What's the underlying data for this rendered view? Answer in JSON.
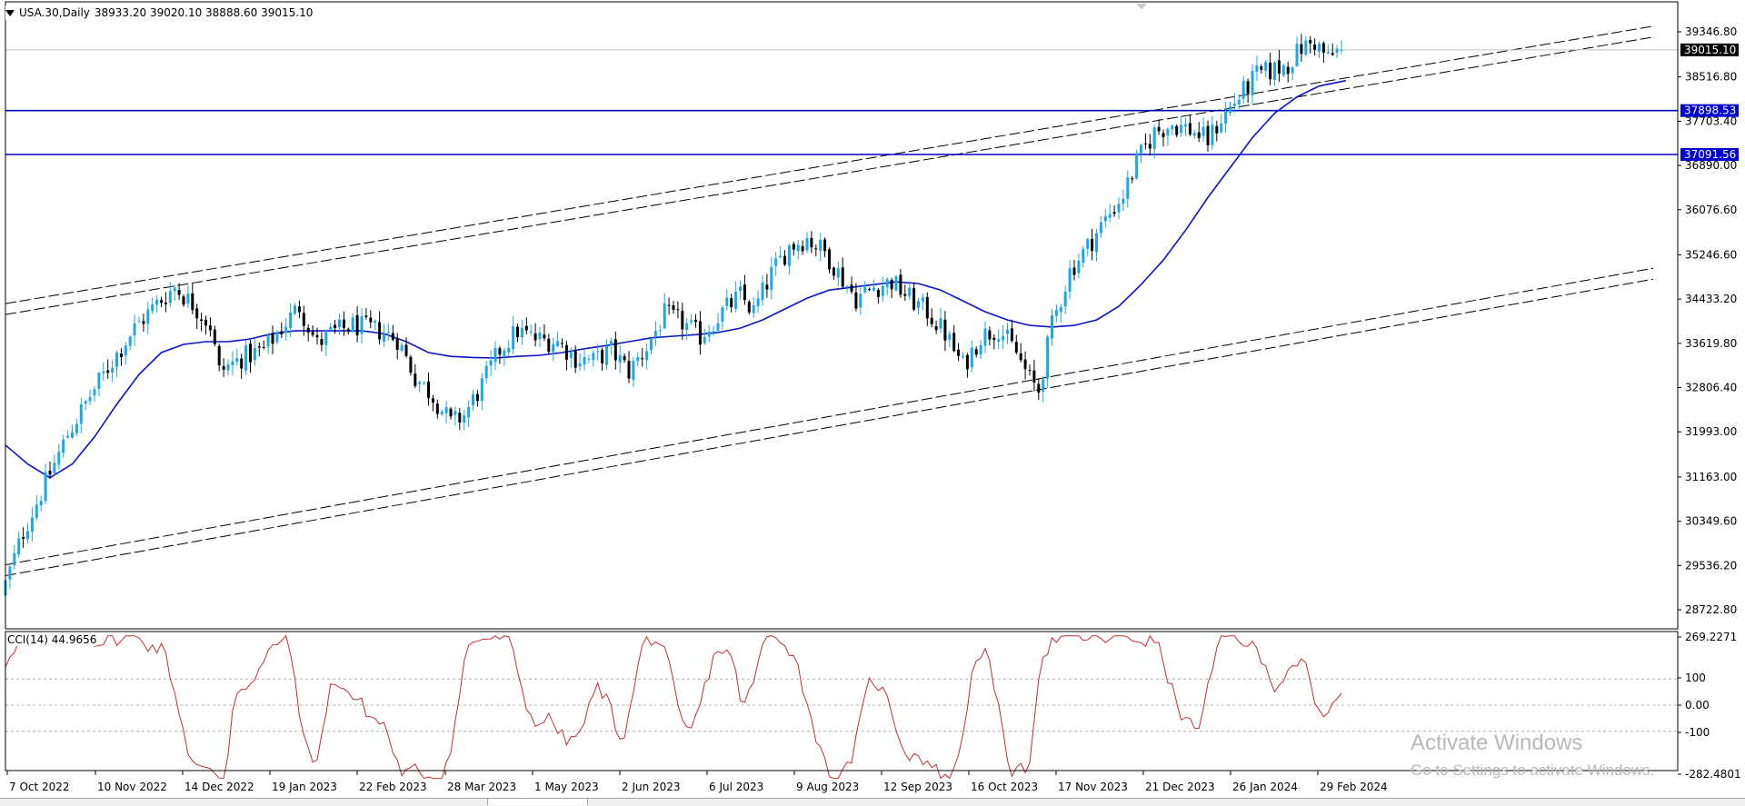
{
  "header": {
    "symbol_tf": "USA.30,Daily",
    "ohlc": "38933.20 39020.10 38888.60 39015.10"
  },
  "indicator": {
    "label": "CCI(14) 44.9656"
  },
  "watermark": {
    "line1": "Activate Windows",
    "line2": "Go to Settings to activate Windows."
  },
  "colors": {
    "bull": "#1ea7e6",
    "bear": "#000000",
    "ma": "#0a14c8",
    "hline": "#0000c0",
    "cci": "#c03030",
    "price_tag_bg": "#000000",
    "level_tag_bg": "#0000d0"
  },
  "chart_data": {
    "type": "candlestick",
    "price_axis_ticks": [
      "39346.80",
      "38516.80",
      "37703.40",
      "36890.00",
      "36076.60",
      "35246.60",
      "34433.20",
      "33619.80",
      "32806.40",
      "31993.00",
      "31163.00",
      "30349.60",
      "29536.20",
      "28722.80"
    ],
    "date_ticks": [
      "7 Oct 2022",
      "10 Nov 2022",
      "14 Dec 2022",
      "19 Jan 2023",
      "22 Feb 2023",
      "28 Mar 2023",
      "1 May 2023",
      "2 Jun 2023",
      "6 Jul 2023",
      "9 Aug 2023",
      "12 Sep 2023",
      "16 Oct 2023",
      "17 Nov 2023",
      "21 Dec 2023",
      "26 Jan 2024",
      "29 Feb 2024"
    ],
    "current_price": "39015.10",
    "horizontal_levels": [
      "37898.53",
      "37091.56"
    ],
    "price_path": [
      [
        0,
        29200
      ],
      [
        4,
        30150
      ],
      [
        9,
        31050
      ],
      [
        14,
        31950
      ],
      [
        19,
        32650
      ],
      [
        24,
        33300
      ],
      [
        29,
        33900
      ],
      [
        34,
        34350
      ],
      [
        38,
        34650
      ],
      [
        42,
        34350
      ],
      [
        46,
        33950
      ],
      [
        48,
        33100
      ],
      [
        53,
        33350
      ],
      [
        58,
        33500
      ],
      [
        62,
        33900
      ],
      [
        66,
        34300
      ],
      [
        70,
        33600
      ],
      [
        73,
        33800
      ],
      [
        78,
        33950
      ],
      [
        84,
        33850
      ],
      [
        88,
        33700
      ],
      [
        92,
        33000
      ],
      [
        96,
        32650
      ],
      [
        100,
        32150
      ],
      [
        103,
        32300
      ],
      [
        107,
        32850
      ],
      [
        111,
        33500
      ],
      [
        115,
        33850
      ],
      [
        119,
        33700
      ],
      [
        124,
        33650
      ],
      [
        128,
        33350
      ],
      [
        132,
        33300
      ],
      [
        136,
        33500
      ],
      [
        140,
        33100
      ],
      [
        144,
        33550
      ],
      [
        148,
        34150
      ],
      [
        152,
        34000
      ],
      [
        156,
        33750
      ],
      [
        161,
        34200
      ],
      [
        165,
        34500
      ],
      [
        168,
        34200
      ],
      [
        172,
        34900
      ],
      [
        176,
        35400
      ],
      [
        180,
        35550
      ],
      [
        184,
        35300
      ],
      [
        188,
        34800
      ],
      [
        191,
        34450
      ],
      [
        195,
        34650
      ],
      [
        199,
        34750
      ],
      [
        203,
        34450
      ],
      [
        207,
        34200
      ],
      [
        211,
        33800
      ],
      [
        215,
        33200
      ],
      [
        219,
        33750
      ],
      [
        223,
        33900
      ],
      [
        227,
        33450
      ],
      [
        230,
        32950
      ],
      [
        232,
        32750
      ],
      [
        235,
        33950
      ],
      [
        239,
        34950
      ],
      [
        243,
        35400
      ],
      [
        247,
        35900
      ],
      [
        251,
        36350
      ],
      [
        254,
        36950
      ],
      [
        258,
        37500
      ],
      [
        262,
        37650
      ],
      [
        266,
        37550
      ],
      [
        270,
        37350
      ],
      [
        273,
        37750
      ],
      [
        277,
        38150
      ],
      [
        281,
        38550
      ],
      [
        285,
        38650
      ],
      [
        288,
        38750
      ],
      [
        291,
        39050
      ],
      [
        294,
        39150
      ],
      [
        297,
        38850
      ],
      [
        300,
        39050
      ],
      [
        301,
        39015
      ]
    ],
    "ma_path": [
      [
        0,
        31750
      ],
      [
        5,
        31400
      ],
      [
        10,
        31150
      ],
      [
        15,
        31400
      ],
      [
        20,
        31900
      ],
      [
        25,
        32500
      ],
      [
        30,
        33050
      ],
      [
        35,
        33450
      ],
      [
        40,
        33600
      ],
      [
        45,
        33650
      ],
      [
        50,
        33650
      ],
      [
        55,
        33700
      ],
      [
        60,
        33800
      ],
      [
        65,
        33850
      ],
      [
        70,
        33850
      ],
      [
        75,
        33850
      ],
      [
        80,
        33850
      ],
      [
        85,
        33800
      ],
      [
        90,
        33650
      ],
      [
        95,
        33450
      ],
      [
        100,
        33380
      ],
      [
        105,
        33360
      ],
      [
        110,
        33350
      ],
      [
        115,
        33380
      ],
      [
        120,
        33400
      ],
      [
        125,
        33450
      ],
      [
        130,
        33520
      ],
      [
        135,
        33580
      ],
      [
        140,
        33650
      ],
      [
        145,
        33720
      ],
      [
        150,
        33750
      ],
      [
        155,
        33780
      ],
      [
        160,
        33820
      ],
      [
        165,
        33900
      ],
      [
        170,
        34050
      ],
      [
        175,
        34250
      ],
      [
        180,
        34450
      ],
      [
        185,
        34600
      ],
      [
        190,
        34650
      ],
      [
        195,
        34700
      ],
      [
        200,
        34750
      ],
      [
        205,
        34720
      ],
      [
        210,
        34600
      ],
      [
        215,
        34400
      ],
      [
        220,
        34200
      ],
      [
        225,
        34050
      ],
      [
        230,
        33950
      ],
      [
        235,
        33920
      ],
      [
        240,
        33950
      ],
      [
        245,
        34050
      ],
      [
        250,
        34300
      ],
      [
        255,
        34700
      ],
      [
        260,
        35150
      ],
      [
        265,
        35700
      ],
      [
        270,
        36300
      ],
      [
        275,
        36850
      ],
      [
        280,
        37400
      ],
      [
        285,
        37850
      ],
      [
        290,
        38150
      ],
      [
        295,
        38350
      ],
      [
        301,
        38450
      ]
    ],
    "channel_lines": [
      {
        "from": [
          0,
          34350
        ],
        "to": [
          370,
          39450
        ]
      },
      {
        "from": [
          0,
          34150
        ],
        "to": [
          370,
          39250
        ]
      },
      {
        "from": [
          0,
          29550
        ],
        "to": [
          370,
          35000
        ]
      },
      {
        "from": [
          0,
          29350
        ],
        "to": [
          370,
          34800
        ]
      }
    ],
    "cci_axis_ticks": [
      "269.2271",
      "100",
      "0.00",
      "-100",
      "-282.4801"
    ],
    "cci_levels": [
      100,
      0,
      -100
    ],
    "cci_range": [
      -282.4801,
      269.2271
    ],
    "cci_last": 44.9656
  }
}
